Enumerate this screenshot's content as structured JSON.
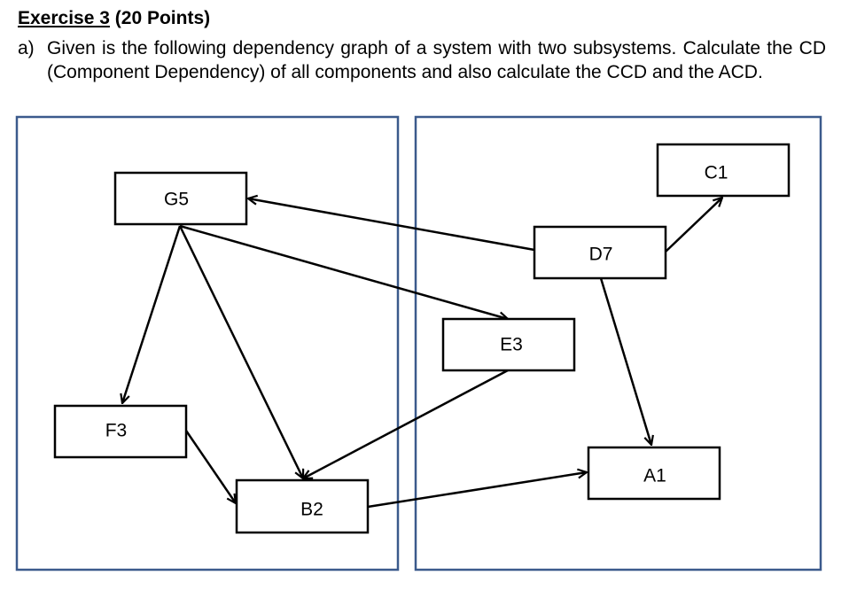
{
  "heading": {
    "exercise": "Exercise 3",
    "points": " (20 Points)"
  },
  "task": {
    "label": "a)",
    "text": "Given is the following dependency graph of a system with two subsystems. Calculate the CD (Component Dependency) of all components and also calculate the CCD and the ACD."
  },
  "colors": {
    "subsystem_border": "#3b5a8c",
    "node_border": "#000000",
    "arrow": "#000000"
  },
  "nodes": {
    "G5": "G5",
    "F3": "F3",
    "B2": "B2",
    "E3": "E3",
    "D7": "D7",
    "C1": "C1",
    "A1": "A1"
  },
  "edges": [
    {
      "from": "G5",
      "to": "F3"
    },
    {
      "from": "G5",
      "to": "B2"
    },
    {
      "from": "G5",
      "to": "E3"
    },
    {
      "from": "F3",
      "to": "B2"
    },
    {
      "from": "E3",
      "to": "B2"
    },
    {
      "from": "B2",
      "to": "A1"
    },
    {
      "from": "D7",
      "to": "G5"
    },
    {
      "from": "D7",
      "to": "C1"
    },
    {
      "from": "D7",
      "to": "A1"
    }
  ]
}
